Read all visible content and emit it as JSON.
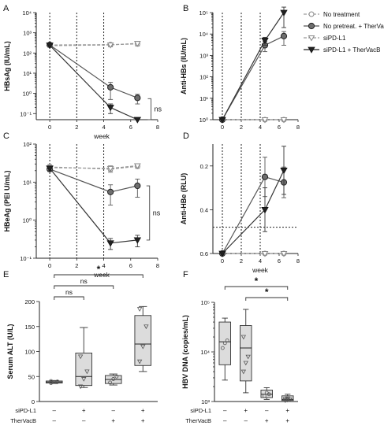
{
  "chart_data": [
    {
      "panel": "A",
      "type": "line",
      "ylabel": "HBsAg (IU/mL)",
      "xlabel": "week",
      "yscale": "log",
      "ylim": [
        0.05,
        10000
      ],
      "xlim": [
        -1,
        8
      ],
      "yticks": [
        "10⁻¹",
        "10⁰",
        "10¹",
        "10²",
        "10³",
        "10⁴"
      ],
      "ytick_values": [
        0.1,
        1,
        10,
        100,
        1000,
        10000
      ],
      "xticks": [
        "0",
        "2",
        "4",
        "6",
        "8"
      ],
      "annotation": "ns",
      "series": [
        {
          "name": "No treatment",
          "x": [
            0,
            4.5,
            6.5
          ],
          "values": [
            250,
            260,
            280
          ],
          "errors": [
            40,
            50,
            60
          ]
        },
        {
          "name": "No pretreat. + TherVacB",
          "x": [
            0,
            4.5,
            6.5
          ],
          "values": [
            250,
            2.0,
            0.6
          ],
          "errors": [
            30,
            1.5,
            0.3
          ]
        },
        {
          "name": "siPD-L1",
          "x": [
            0,
            4.5,
            6.5
          ],
          "values": [
            230,
            250,
            300
          ],
          "errors": [
            40,
            50,
            70
          ]
        },
        {
          "name": "siPD-L1 + TherVacB",
          "x": [
            0,
            4.5,
            6.5
          ],
          "values": [
            240,
            0.2,
            0.05
          ],
          "errors": [
            30,
            0.1,
            0.01
          ]
        }
      ]
    },
    {
      "panel": "B",
      "type": "line",
      "ylabel": "Anti-HBs (IU/mL)",
      "xlabel": "",
      "yscale": "log",
      "ylim": [
        1,
        100000
      ],
      "xlim": [
        -1,
        8
      ],
      "yticks": [
        "10⁰",
        "10¹",
        "10²",
        "10³",
        "10⁴",
        "10⁵"
      ],
      "ytick_values": [
        1,
        10,
        100,
        1000,
        10000,
        100000
      ],
      "xticks": [
        "0",
        "2",
        "4",
        "6",
        "8"
      ],
      "series": [
        {
          "name": "No treatment",
          "x": [
            0,
            4.5,
            6.5
          ],
          "values": [
            1,
            1,
            1
          ],
          "errors": [
            0,
            0,
            0
          ]
        },
        {
          "name": "No pretreat. + TherVacB",
          "x": [
            0,
            4.5,
            6.5
          ],
          "values": [
            1,
            3000,
            8000
          ],
          "errors": [
            0,
            1500,
            5000
          ]
        },
        {
          "name": "siPD-L1",
          "x": [
            0,
            4.5,
            6.5
          ],
          "values": [
            1,
            1,
            1
          ],
          "errors": [
            0,
            0,
            0
          ]
        },
        {
          "name": "siPD-L1 + TherVacB",
          "x": [
            0,
            4.5,
            6.5
          ],
          "values": [
            1,
            5000,
            100000
          ],
          "errors": [
            0,
            2000,
            80000
          ]
        }
      ]
    },
    {
      "panel": "C",
      "type": "line",
      "ylabel": "HBeAg (PEI U/mL)",
      "xlabel": "week",
      "yscale": "log",
      "ylim": [
        0.1,
        100
      ],
      "xlim": [
        -1,
        8
      ],
      "yticks": [
        "10⁻¹",
        "10⁰",
        "10¹",
        "10²"
      ],
      "ytick_values": [
        0.1,
        1,
        10,
        100
      ],
      "xticks": [
        "0",
        "2",
        "4",
        "6",
        "8"
      ],
      "annotation": "ns",
      "series": [
        {
          "name": "No treatment",
          "x": [
            0,
            4.5,
            6.5
          ],
          "values": [
            25,
            22,
            26
          ],
          "errors": [
            4,
            4,
            3
          ]
        },
        {
          "name": "No pretreat. + TherVacB",
          "x": [
            0,
            4.5,
            6.5
          ],
          "values": [
            22,
            5.5,
            8
          ],
          "errors": [
            3,
            3,
            4
          ]
        },
        {
          "name": "siPD-L1",
          "x": [
            0,
            4.5,
            6.5
          ],
          "values": [
            24,
            23,
            27
          ],
          "errors": [
            3,
            4,
            3
          ]
        },
        {
          "name": "siPD-L1 + TherVacB",
          "x": [
            0,
            4.5,
            6.5
          ],
          "values": [
            23,
            0.25,
            0.3
          ],
          "errors": [
            3,
            0.08,
            0.1
          ]
        }
      ]
    },
    {
      "panel": "D",
      "type": "line",
      "ylabel": "Anti-HBe (RLU)",
      "xlabel": "week",
      "yscale": "linear-inverted",
      "ylim": [
        0.1,
        0.6
      ],
      "xlim": [
        -1,
        8
      ],
      "yticks": [
        "0.2",
        "0.4",
        "0.6"
      ],
      "ytick_values": [
        0.2,
        0.4,
        0.6
      ],
      "xticks": [
        "0",
        "2",
        "4",
        "6",
        "8"
      ],
      "cutoff": 0.48,
      "series": [
        {
          "name": "No treatment",
          "x": [
            0,
            4.5,
            6.5
          ],
          "values": [
            0.6,
            0.6,
            0.6
          ],
          "errors": [
            0,
            0,
            0
          ]
        },
        {
          "name": "No pretreat. + TherVacB",
          "x": [
            0,
            4.5,
            6.5
          ],
          "values": [
            0.6,
            0.25,
            0.275
          ],
          "errors": [
            0,
            0.09,
            0.07
          ]
        },
        {
          "name": "siPD-L1",
          "x": [
            0,
            4.5,
            6.5
          ],
          "values": [
            0.6,
            0.6,
            0.6
          ],
          "errors": [
            0,
            0,
            0
          ]
        },
        {
          "name": "siPD-L1 + TherVacB",
          "x": [
            0,
            4.5,
            6.5
          ],
          "values": [
            0.6,
            0.4,
            0.22
          ],
          "errors": [
            0,
            0.1,
            0.11
          ]
        }
      ]
    },
    {
      "panel": "E",
      "type": "box",
      "ylabel": "Serum ALT (U/L)",
      "ylim": [
        0,
        200
      ],
      "yticks": [
        "0",
        "50",
        "100",
        "150",
        "200"
      ],
      "ytick_values": [
        0,
        50,
        100,
        150,
        200
      ],
      "row_labels": [
        "siPD-L1",
        "TherVacB"
      ],
      "groups": [
        {
          "siPD-L1": "–",
          "TherVacB": "–",
          "min": 36,
          "q1": 37,
          "median": 39,
          "q3": 41,
          "max": 42,
          "points": [
            37,
            39,
            40,
            41
          ]
        },
        {
          "siPD-L1": "+",
          "TherVacB": "–",
          "min": 28,
          "q1": 32,
          "median": 50,
          "q3": 97,
          "max": 148,
          "points": [
            30,
            45,
            60,
            90
          ]
        },
        {
          "siPD-L1": "–",
          "TherVacB": "+",
          "min": 33,
          "q1": 36,
          "median": 44,
          "q3": 52,
          "max": 55,
          "points": [
            38,
            45,
            50
          ]
        },
        {
          "siPD-L1": "+",
          "TherVacB": "+",
          "min": 60,
          "q1": 72,
          "median": 115,
          "q3": 172,
          "max": 190,
          "points": [
            80,
            110,
            150,
            185
          ]
        }
      ],
      "significance": [
        {
          "from": 0,
          "to": 1,
          "label": "ns"
        },
        {
          "from": 0,
          "to": 2,
          "label": "ns"
        },
        {
          "from": 0,
          "to": 3,
          "label": "*"
        }
      ]
    },
    {
      "panel": "F",
      "type": "box",
      "ylabel": "HBV DNA (copies/mL)",
      "yscale": "log",
      "ylim": [
        1000,
        100000
      ],
      "yticks": [
        "10³",
        "10⁴",
        "10⁵"
      ],
      "ytick_values": [
        1000,
        10000,
        100000
      ],
      "row_labels": [
        "siPD-L1",
        "TherVacB"
      ],
      "groups": [
        {
          "siPD-L1": "–",
          "TherVacB": "–",
          "min": 2700,
          "q1": 5500,
          "median": 16000,
          "q3": 40000,
          "max": 48000,
          "points": [
            12000,
            15000,
            17000
          ]
        },
        {
          "siPD-L1": "+",
          "TherVacB": "–",
          "min": 1500,
          "q1": 2600,
          "median": 12000,
          "q3": 34000,
          "max": 72000,
          "points": [
            4000,
            6000,
            8000,
            20000
          ]
        },
        {
          "siPD-L1": "–",
          "TherVacB": "+",
          "min": 1100,
          "q1": 1200,
          "median": 1400,
          "q3": 1700,
          "max": 1900,
          "points": [
            1300,
            1500,
            1400
          ]
        },
        {
          "siPD-L1": "+",
          "TherVacB": "+",
          "min": 1000,
          "q1": 1050,
          "median": 1100,
          "q3": 1300,
          "max": 1400,
          "points": [
            1050,
            1080,
            1100,
            1120,
            1150
          ]
        }
      ],
      "significance": [
        {
          "from": 1,
          "to": 3,
          "label": "*"
        },
        {
          "from": 0,
          "to": 3,
          "label": "*"
        }
      ]
    }
  ],
  "legend": [
    {
      "name": "No treatment",
      "marker": "circle-open",
      "color": "#9a9a9a",
      "dash": true
    },
    {
      "name": "No pretreat. + TherVacB",
      "marker": "circle",
      "color": "#555555",
      "dash": false
    },
    {
      "name": "siPD-L1",
      "marker": "triangle-open",
      "color": "#9a9a9a",
      "dash": true
    },
    {
      "name": "siPD-L1 + TherVacB",
      "marker": "triangle",
      "color": "#222222",
      "dash": false
    }
  ],
  "panel_letters": [
    "A",
    "B",
    "C",
    "D",
    "E",
    "F"
  ]
}
